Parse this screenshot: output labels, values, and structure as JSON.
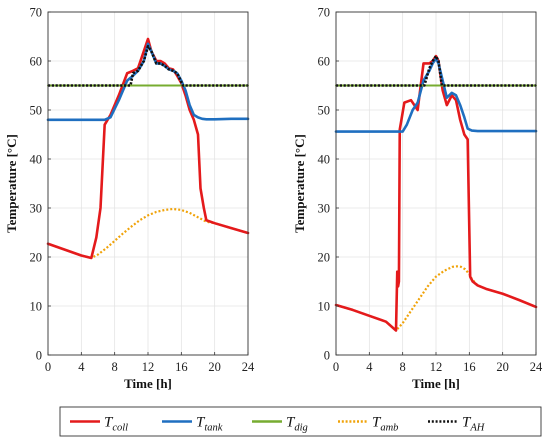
{
  "chart_data": [
    {
      "type": "line",
      "xlabel": "Time [h]",
      "ylabel": "Temperature [°C]",
      "xlim": [
        0,
        24
      ],
      "ylim": [
        0,
        70
      ],
      "xticks": [
        0,
        4,
        8,
        12,
        16,
        20,
        24
      ],
      "yticks": [
        0,
        10,
        20,
        30,
        40,
        50,
        60,
        70
      ],
      "grid": true,
      "series": [
        {
          "id": "coll",
          "color": "#e41a1c",
          "style": "solid",
          "x": [
            0,
            2,
            4,
            5.2,
            5.8,
            6.3,
            6.8,
            7.5,
            8.5,
            9.5,
            10.2,
            10.8,
            11.5,
            12.0,
            12.4,
            13.0,
            13.5,
            14.0,
            14.5,
            15.0,
            15.5,
            16.0,
            16.5,
            17.0,
            17.5,
            18.0,
            18.3,
            18.7,
            19.0,
            20,
            22,
            24
          ],
          "y": [
            22.7,
            21.5,
            20.3,
            19.8,
            24,
            30,
            47,
            49,
            53,
            57.5,
            58,
            58.5,
            62,
            64.5,
            62,
            60,
            60,
            59.5,
            58.5,
            58.3,
            57,
            55.5,
            53,
            50,
            48,
            45,
            34,
            30,
            27.5,
            26.9,
            25.9,
            24.9
          ]
        },
        {
          "id": "tank",
          "color": "#1f6fc0",
          "style": "solid",
          "x": [
            0,
            3,
            6,
            6.8,
            7.5,
            8.5,
            9.5,
            10.2,
            10.8,
            11.5,
            12.0,
            12.4,
            13.0,
            13.5,
            14.0,
            14.5,
            15.0,
            15.5,
            16.0,
            16.5,
            17.0,
            17.5,
            18.0,
            18.5,
            19.0,
            20,
            22,
            24
          ],
          "y": [
            48,
            48,
            48,
            48,
            48.5,
            52,
            56,
            57,
            58,
            60,
            63.5,
            62,
            59.5,
            59.5,
            59,
            58.3,
            58,
            57.5,
            56,
            54,
            51,
            49,
            48.5,
            48.2,
            48.1,
            48.1,
            48.2,
            48.2
          ]
        },
        {
          "id": "dig",
          "color": "#77ac30",
          "style": "solid",
          "x": [
            0,
            24
          ],
          "y": [
            55,
            55
          ]
        },
        {
          "id": "amb",
          "color": "#f0a30a",
          "style": "dotted",
          "x": [
            0,
            2,
            4,
            5.2,
            6,
            7,
            8,
            9,
            10,
            11,
            12,
            13,
            14,
            15,
            16,
            17,
            18,
            19,
            20,
            22,
            24
          ],
          "y": [
            22.7,
            21.5,
            20.3,
            19.8,
            20.5,
            21.8,
            23.3,
            24.8,
            26.2,
            27.5,
            28.5,
            29.2,
            29.6,
            29.8,
            29.6,
            29,
            28.1,
            27.2,
            26.9,
            25.9,
            24.9
          ]
        },
        {
          "id": "ah",
          "color": "#111111",
          "style": "dotted",
          "x": [
            0,
            9.9,
            10.2,
            10.8,
            11.5,
            12.0,
            12.4,
            13.0,
            13.5,
            14.0,
            14.5,
            15.0,
            15.5,
            16.2,
            16.5,
            24
          ],
          "y": [
            55,
            55,
            57.5,
            58,
            60,
            63,
            62,
            59.5,
            59.5,
            59,
            58.3,
            58,
            57.5,
            55,
            55,
            55
          ]
        }
      ]
    },
    {
      "type": "line",
      "xlabel": "Time [h]",
      "ylabel": "Temperature [°C]",
      "xlim": [
        0,
        24
      ],
      "ylim": [
        0,
        70
      ],
      "xticks": [
        0,
        4,
        8,
        12,
        16,
        20,
        24
      ],
      "yticks": [
        0,
        10,
        20,
        30,
        40,
        50,
        60,
        70
      ],
      "grid": true,
      "series": [
        {
          "id": "coll",
          "color": "#e41a1c",
          "style": "solid",
          "x": [
            0,
            2,
            4,
            6,
            7.2,
            7.35,
            7.45,
            7.55,
            7.65,
            7.85,
            8.2,
            9,
            9.8,
            10.5,
            11.2,
            11.6,
            12.0,
            12.3,
            12.8,
            13.3,
            13.9,
            14.4,
            14.9,
            15.4,
            15.8,
            16.1,
            16.4,
            17,
            18,
            20,
            22,
            24
          ],
          "y": [
            10.2,
            9.2,
            8.0,
            6.8,
            5.0,
            17,
            14,
            15,
            46,
            48,
            51.5,
            52,
            50,
            59.5,
            59.5,
            60,
            61,
            60,
            54,
            51,
            53,
            52,
            48,
            45,
            44,
            16,
            15,
            14.2,
            13.5,
            12.5,
            11.2,
            9.8
          ]
        },
        {
          "id": "tank",
          "color": "#1f6fc0",
          "style": "solid",
          "x": [
            0,
            3,
            6,
            7.5,
            8,
            8.5,
            9.2,
            9.8,
            10.5,
            11.2,
            11.6,
            12.0,
            12.3,
            12.8,
            13.3,
            13.9,
            14.4,
            14.9,
            15.4,
            15.8,
            16.3,
            17,
            18,
            20,
            24
          ],
          "y": [
            45.6,
            45.6,
            45.6,
            45.6,
            45.6,
            47,
            50,
            51.5,
            56,
            58,
            59.5,
            60.5,
            59.5,
            56,
            52.5,
            53.5,
            53,
            51,
            48.5,
            46.2,
            45.8,
            45.7,
            45.7,
            45.7,
            45.7
          ]
        },
        {
          "id": "dig",
          "color": "#77ac30",
          "style": "solid",
          "x": [
            0,
            24
          ],
          "y": [
            55,
            55
          ]
        },
        {
          "id": "amb",
          "color": "#f0a30a",
          "style": "dotted",
          "x": [
            0,
            2,
            4,
            6,
            7.2,
            8,
            9,
            10,
            11,
            12,
            13,
            14,
            14.5,
            15,
            15.5,
            16,
            16.3,
            17,
            18,
            20,
            22,
            24
          ],
          "y": [
            10.2,
            9.2,
            8.0,
            6.8,
            5.0,
            6.5,
            9,
            11.5,
            14,
            16,
            17.2,
            18,
            18.1,
            18,
            17.5,
            16.5,
            15.5,
            14.2,
            13.5,
            12.5,
            11.2,
            9.8
          ]
        },
        {
          "id": "ah",
          "color": "#111111",
          "style": "dotted",
          "x": [
            0,
            10.6,
            11.2,
            11.6,
            12.0,
            12.3,
            12.7,
            24
          ],
          "y": [
            55,
            55,
            58.5,
            60,
            61,
            60,
            55,
            55
          ]
        }
      ]
    }
  ],
  "legend": {
    "placement": "bottom",
    "items": [
      {
        "series": "coll",
        "base": "T",
        "sub": "coll",
        "color": "#e41a1c",
        "style": "solid"
      },
      {
        "series": "tank",
        "base": "T",
        "sub": "tank",
        "color": "#1f6fc0",
        "style": "solid"
      },
      {
        "series": "dig",
        "base": "T",
        "sub": "dig",
        "color": "#77ac30",
        "style": "solid"
      },
      {
        "series": "amb",
        "base": "T",
        "sub": "amb",
        "color": "#f0a30a",
        "style": "dotted"
      },
      {
        "series": "ah",
        "base": "T",
        "sub": "AH",
        "color": "#111111",
        "style": "dotted"
      }
    ]
  }
}
